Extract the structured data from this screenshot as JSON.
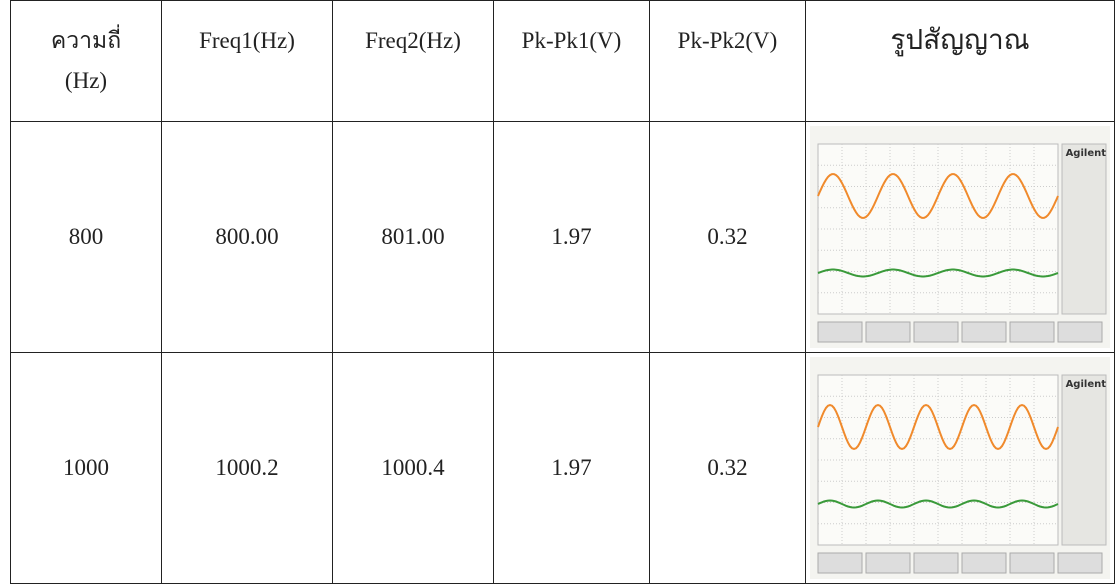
{
  "table": {
    "header": [
      "ความถี่ (Hz)",
      "Freq1(Hz)",
      "Freq2(Hz)",
      "Pk-Pk1(V)",
      "Pk-Pk2(V)",
      "รูปสัญญาณ"
    ],
    "rows": [
      {
        "cells": [
          "800",
          "800.00",
          "801.00",
          "1.97",
          "0.32"
        ],
        "image_brand": "Agilent"
      },
      {
        "cells": [
          "1000",
          "1000.2",
          "1000.4",
          "1.97",
          "0.32"
        ],
        "image_brand": "Agilent"
      }
    ]
  }
}
